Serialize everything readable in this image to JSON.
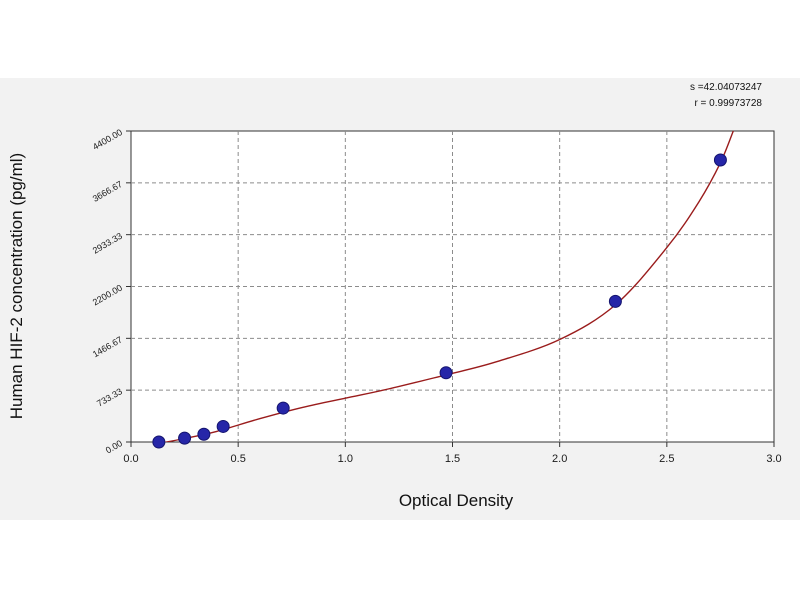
{
  "chart_data": {
    "type": "scatter",
    "xlabel": "Optical Density",
    "ylabel": "Human  HIF-2 concentration (pg/ml)",
    "xlim": [
      0.0,
      3.0
    ],
    "ylim": [
      0.0,
      4400.0
    ],
    "x_ticks": [
      "0.0",
      "0.5",
      "1.0",
      "1.5",
      "2.0",
      "2.5",
      "3.0"
    ],
    "y_ticks": [
      "0.00",
      "733.33",
      "1466.67",
      "2200.00",
      "2933.33",
      "3666.67",
      "4400.00"
    ],
    "x_tick_values": [
      0.0,
      0.5,
      1.0,
      1.5,
      2.0,
      2.5,
      3.0
    ],
    "y_tick_values": [
      0.0,
      733.33,
      1466.67,
      2200.0,
      2933.33,
      3666.67,
      4400.0
    ],
    "grid": true,
    "stats": {
      "s_text": "s =42.04073247",
      "r_text": "r = 0.99973728"
    },
    "points": [
      {
        "x": 0.13,
        "y": 0
      },
      {
        "x": 0.25,
        "y": 55
      },
      {
        "x": 0.34,
        "y": 110
      },
      {
        "x": 0.43,
        "y": 220
      },
      {
        "x": 0.71,
        "y": 480
      },
      {
        "x": 1.47,
        "y": 980
      },
      {
        "x": 2.26,
        "y": 1990
      },
      {
        "x": 2.75,
        "y": 3990
      }
    ],
    "fit_curve": [
      {
        "x": 0.13,
        "y": -20
      },
      {
        "x": 0.25,
        "y": 50
      },
      {
        "x": 0.4,
        "y": 150
      },
      {
        "x": 0.6,
        "y": 330
      },
      {
        "x": 0.8,
        "y": 490
      },
      {
        "x": 1.0,
        "y": 620
      },
      {
        "x": 1.2,
        "y": 750
      },
      {
        "x": 1.47,
        "y": 950
      },
      {
        "x": 1.7,
        "y": 1130
      },
      {
        "x": 2.0,
        "y": 1450
      },
      {
        "x": 2.26,
        "y": 1940
      },
      {
        "x": 2.5,
        "y": 2750
      },
      {
        "x": 2.65,
        "y": 3400
      },
      {
        "x": 2.75,
        "y": 3950
      },
      {
        "x": 2.81,
        "y": 4400
      }
    ],
    "colors": {
      "point_fill": "#2626a8",
      "curve": "#9a1c1c",
      "panel": "#f2f2f2"
    }
  }
}
